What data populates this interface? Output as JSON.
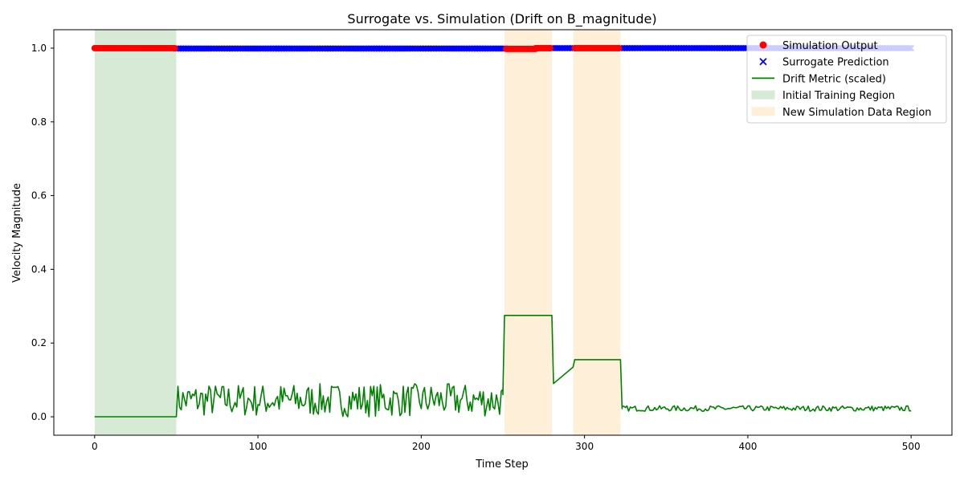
{
  "chart_data": {
    "type": "scatter",
    "title": "Surrogate vs. Simulation (Drift on B_magnitude)",
    "xlabel": "Time Step",
    "ylabel": "Velocity Magnitude",
    "xlim": [
      -25,
      525
    ],
    "ylim": [
      -0.05,
      1.05
    ],
    "xticks": [
      0,
      100,
      200,
      300,
      400,
      500
    ],
    "xtick_labels": [
      "0",
      "100",
      "200",
      "300",
      "400",
      "500"
    ],
    "yticks": [
      0.0,
      0.2,
      0.4,
      0.6,
      0.8,
      1.0
    ],
    "ytick_labels": [
      "0.0",
      "0.2",
      "0.4",
      "0.6",
      "0.8",
      "1.0"
    ],
    "grid": false,
    "legend_position": "top-right",
    "colors": {
      "simulation": "#ff0000",
      "surrogate": "#0000ff",
      "drift": "#008000",
      "training_region": "#d6ead6",
      "new_data_region": "#fdefd8"
    },
    "regions": [
      {
        "name": "Initial Training Region",
        "x": [
          0,
          50
        ],
        "color": "#d6ead6"
      },
      {
        "name": "New Simulation Data Region",
        "x": [
          251,
          280
        ],
        "color": "#fdefd8"
      },
      {
        "name": "New Simulation Data Region",
        "x": [
          293,
          322
        ],
        "color": "#fdefd8"
      }
    ],
    "legend": [
      {
        "label": "Simulation Output",
        "marker": "circle",
        "color": "#ff0000"
      },
      {
        "label": "Surrogate Prediction",
        "marker": "x",
        "color": "#0000ff"
      },
      {
        "label": "Drift Metric (scaled)",
        "marker": "line",
        "color": "#008000"
      },
      {
        "label": "Initial Training Region",
        "marker": "patch",
        "color": "#d6ead6"
      },
      {
        "label": "New Simulation Data Region",
        "marker": "patch",
        "color": "#fdefd8"
      }
    ],
    "series": [
      {
        "name": "Simulation Output",
        "marker": "circle",
        "segments": [
          {
            "x_start": 0,
            "x_end": 49,
            "y": 1.0
          },
          {
            "x_start": 252,
            "x_end": 270,
            "y": 0.998
          },
          {
            "x_start": 270,
            "x_end": 279,
            "y": 1.0
          },
          {
            "x_start": 294,
            "x_end": 321,
            "y": 1.0
          }
        ]
      },
      {
        "name": "Surrogate Prediction",
        "marker": "x",
        "segments": [
          {
            "x_start": 50,
            "x_end": 251,
            "y": 0.999
          },
          {
            "x_start": 280,
            "x_end": 293,
            "y": 1.0
          },
          {
            "x_start": 322,
            "x_end": 500,
            "y": 1.0
          }
        ]
      },
      {
        "name": "Drift Metric (scaled)",
        "pieces": [
          {
            "kind": "flat",
            "x_start": 0,
            "x_end": 50,
            "y": 0.0
          },
          {
            "kind": "noise",
            "x_start": 50,
            "x_end": 250,
            "y_min": 0.0,
            "y_max": 0.09
          },
          {
            "kind": "line",
            "points": [
              [
                250,
                0.06
              ],
              [
                251,
                0.275
              ],
              [
                280,
                0.275
              ],
              [
                281,
                0.09
              ],
              [
                293,
                0.135
              ],
              [
                294,
                0.155
              ],
              [
                322,
                0.155
              ],
              [
                323,
                0.022
              ]
            ]
          },
          {
            "kind": "noise",
            "x_start": 323,
            "x_end": 500,
            "y_min": 0.015,
            "y_max": 0.03
          }
        ]
      }
    ]
  }
}
